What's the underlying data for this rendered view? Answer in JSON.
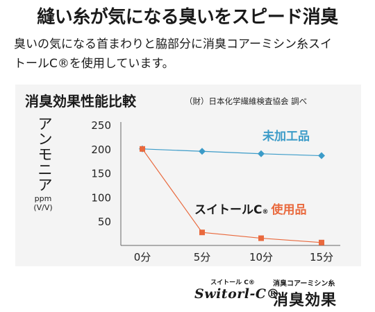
{
  "headline": "縫い糸が気になる臭いをスピード消臭",
  "intro": "臭いの気になる首まわりと脇部分に消臭コアーミシン糸スイトールC®を使用しています。",
  "panel": {
    "title": "消臭効果性能比較",
    "source": "（財）日本化学繊維検査協会 調べ"
  },
  "chart_data": {
    "type": "line",
    "title": "消臭効果性能比較",
    "ylabel": "アンモニア ppm (V/V)",
    "ylabel_main": "アンモニア",
    "ylabel_unit": "ppm",
    "ylabel_unit2": "(V/V)",
    "xlabel": "",
    "categories": [
      "0分",
      "5分",
      "10分",
      "15分"
    ],
    "y_ticks": [
      50,
      100,
      150,
      200,
      250
    ],
    "ylim": [
      0,
      250
    ],
    "grid": "none",
    "series": [
      {
        "name": "未加工品",
        "values": [
          200,
          195,
          190,
          186
        ],
        "color": "#3b9bc8",
        "marker": "diamond"
      },
      {
        "name": "スイトールC®使用品",
        "label_brand": "スイトールC",
        "label_suffix": "使用品",
        "values": [
          200,
          27,
          15,
          6
        ],
        "color": "#e9693d",
        "marker": "square"
      }
    ]
  },
  "footer": {
    "brand_small": "スイトール C®",
    "brand_logo": "Switorl-C®",
    "effect_small": "消臭コアーミシン糸",
    "effect_big": "消臭効果"
  }
}
